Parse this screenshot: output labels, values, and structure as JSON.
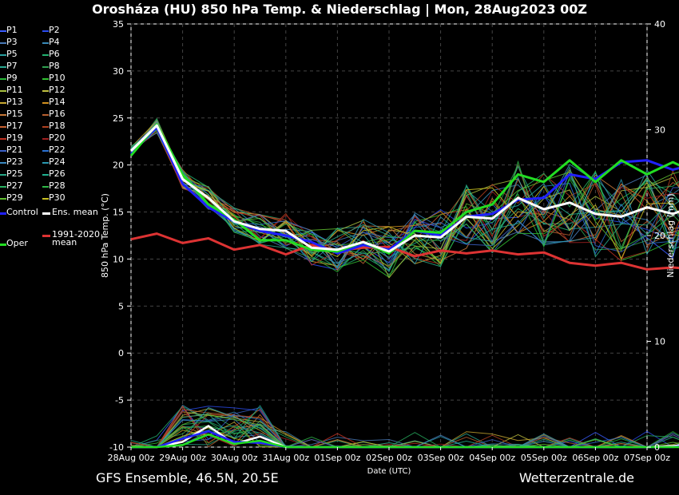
{
  "title": "Orosháza  (HU)  850 hPa Temp. & Niederschlag | Mon, 28Aug2023 00Z",
  "footer": {
    "left": "GFS Ensemble, 46.5N, 20.5E",
    "right": "Wetterzentrale.de"
  },
  "legend": {
    "members": [
      {
        "label": "P1",
        "color": "#3a5cff"
      },
      {
        "label": "P2",
        "color": "#2a4cee"
      },
      {
        "label": "P3",
        "color": "#4a7ab8"
      },
      {
        "label": "P4",
        "color": "#3a8ab8"
      },
      {
        "label": "P5",
        "color": "#2aa0a0"
      },
      {
        "label": "P6",
        "color": "#22b070"
      },
      {
        "label": "P7",
        "color": "#2aa890"
      },
      {
        "label": "P8",
        "color": "#30a050"
      },
      {
        "label": "P9",
        "color": "#28b838"
      },
      {
        "label": "P10",
        "color": "#30c030"
      },
      {
        "label": "P11",
        "color": "#a8c040"
      },
      {
        "label": "P12",
        "color": "#c0c040"
      },
      {
        "label": "P13",
        "color": "#c8a830"
      },
      {
        "label": "P14",
        "color": "#d09020"
      },
      {
        "label": "P15",
        "color": "#c87838"
      },
      {
        "label": "P16",
        "color": "#b86030"
      },
      {
        "label": "P17",
        "color": "#c86030"
      },
      {
        "label": "P18",
        "color": "#b04020"
      },
      {
        "label": "P19",
        "color": "#c03020"
      },
      {
        "label": "P20",
        "color": "#a02020"
      },
      {
        "label": "P21",
        "color": "#3a60c8"
      },
      {
        "label": "P22",
        "color": "#2a70d0"
      },
      {
        "label": "P23",
        "color": "#3a88c0"
      },
      {
        "label": "P24",
        "color": "#2a98b0"
      },
      {
        "label": "P25",
        "color": "#28a888"
      },
      {
        "label": "P26",
        "color": "#20b090"
      },
      {
        "label": "P27",
        "color": "#28b060"
      },
      {
        "label": "P28",
        "color": "#30b848"
      },
      {
        "label": "P29",
        "color": "#60c030"
      },
      {
        "label": "P30",
        "color": "#c8c020"
      }
    ],
    "control": {
      "label": "Control",
      "color": "#2020ff"
    },
    "ens_mean": {
      "label": "Ens. mean",
      "color": "#ffffff"
    },
    "oper": {
      "label": "Oper",
      "color": "#22dd22"
    },
    "clim": {
      "label_line1": "1991-2020",
      "label_line2": "mean",
      "color": "#dd3333"
    }
  },
  "chart_data": {
    "type": "line",
    "xlabel": "Date (UTC)",
    "ylabel": "850 hPa Temp. (°C)",
    "y2label": "Niederschlag (mm)",
    "x_ticks": [
      "28Aug 00z",
      "29Aug 00z",
      "30Aug 00z",
      "31Aug 00z",
      "01Sep 00z",
      "02Sep 00z",
      "03Sep 00z",
      "04Sep 00z",
      "05Sep 00z",
      "06Sep 00z",
      "07Sep 00z"
    ],
    "x_range_days": [
      0,
      10
    ],
    "ylim": [
      -10,
      35
    ],
    "y_ticks": [
      -10,
      -5,
      0,
      5,
      10,
      15,
      20,
      25,
      30,
      35
    ],
    "y2lim": [
      0,
      40
    ],
    "y2_ticks": [
      0,
      10,
      20,
      30,
      40
    ],
    "grid": true,
    "x_step_hours": 12,
    "series": [
      {
        "name": "Control",
        "color": "#2020ff",
        "values": [
          21.2,
          24.0,
          18.0,
          15.5,
          14.0,
          13.0,
          12.5,
          11.8,
          10.6,
          11.5,
          11.0,
          13.0,
          12.5,
          14.5,
          14.8,
          16.3,
          16.5,
          19.0,
          18.5,
          20.3,
          20.5,
          19.5,
          20.2
        ]
      },
      {
        "name": "Ens. mean",
        "color": "#ffffff",
        "values": [
          21.5,
          24.2,
          18.5,
          16.5,
          14.0,
          13.2,
          13.0,
          11.2,
          11.0,
          11.8,
          10.8,
          12.5,
          12.3,
          14.5,
          14.3,
          16.5,
          15.3,
          16.0,
          14.8,
          14.5,
          15.5,
          14.8,
          15.8
        ]
      },
      {
        "name": "Oper",
        "color": "#22dd22",
        "values": [
          21.0,
          24.3,
          19.0,
          15.8,
          14.2,
          12.0,
          12.0,
          11.0,
          10.8,
          11.8,
          10.6,
          13.0,
          12.8,
          15.0,
          15.8,
          19.0,
          18.2,
          20.5,
          18.2,
          20.5,
          19.0,
          20.3,
          19.0
        ]
      },
      {
        "name": "1991-2020 mean",
        "color": "#dd3333",
        "values": [
          12.1,
          12.7,
          11.7,
          12.2,
          11.0,
          11.5,
          10.5,
          11.5,
          10.9,
          11.2,
          11.3,
          10.3,
          10.9,
          10.6,
          10.9,
          10.5,
          10.7,
          9.6,
          9.3,
          9.6,
          8.9,
          9.1,
          8.9
        ]
      }
    ],
    "precip_series": [
      {
        "name": "Ens. mean",
        "color": "#ffffff",
        "values": [
          0,
          0,
          0.5,
          2,
          0.3,
          1,
          0,
          0,
          0,
          0,
          0,
          0,
          0,
          0,
          0,
          0,
          0,
          0,
          0,
          0,
          0,
          0.1,
          0.4
        ]
      },
      {
        "name": "Control",
        "color": "#2020ff",
        "values": [
          0,
          0,
          0.8,
          1.5,
          0.5,
          0.4,
          0,
          0,
          0,
          0,
          0,
          0,
          0,
          0,
          0,
          0,
          0,
          0,
          0,
          0,
          0,
          0,
          0.2
        ]
      },
      {
        "name": "Oper",
        "color": "#22dd22",
        "values": [
          0,
          0,
          0.2,
          1.2,
          0.3,
          0.6,
          0,
          0,
          0,
          0,
          0,
          0,
          0,
          0,
          0,
          0,
          0,
          0,
          0,
          0,
          0,
          0,
          0
        ]
      }
    ]
  }
}
